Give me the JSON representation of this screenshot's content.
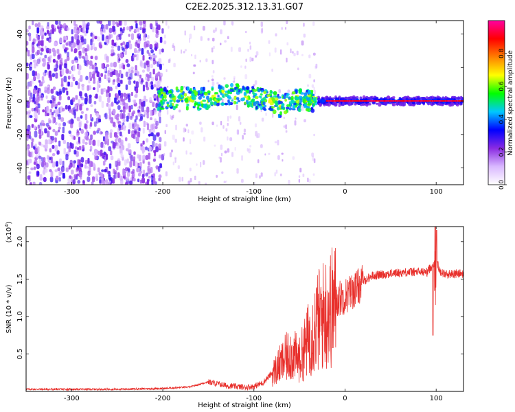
{
  "chart_data": [
    {
      "type": "heatmap",
      "title": "C2E2.2025.312.13.31.G07",
      "xlabel": "Height of straight line (km)",
      "ylabel": "Frequency (Hz)",
      "xlim": [
        -350,
        130
      ],
      "ylim": [
        -50,
        48
      ],
      "x_ticks": [
        -300,
        -200,
        -100,
        0,
        100
      ],
      "y_ticks": [
        -40,
        -20,
        0,
        20,
        40
      ],
      "colorbar": {
        "label": "Normalized spectral amplitude",
        "range": [
          0,
          1
        ],
        "ticks": [
          0.0,
          0.2,
          0.4,
          0.6,
          0.8
        ],
        "colors": [
          "#ffffff",
          "#d9b8ff",
          "#8a2be2",
          "#0000ff",
          "#00c8ff",
          "#00ff00",
          "#ffff00",
          "#ff8000",
          "#ff0000",
          "#ff00a0"
        ]
      },
      "signal_center_hz": [
        [
          -200,
          1
        ],
        [
          -180,
          2
        ],
        [
          -160,
          1
        ],
        [
          -140,
          3
        ],
        [
          -120,
          4
        ],
        [
          -100,
          2
        ],
        [
          -80,
          0
        ],
        [
          -70,
          -4
        ],
        [
          -60,
          1
        ],
        [
          -40,
          0
        ],
        [
          -20,
          0
        ],
        [
          0,
          0
        ],
        [
          100,
          0
        ],
        [
          130,
          0
        ]
      ]
    },
    {
      "type": "line",
      "xlabel": "Height of straight line (km)",
      "ylabel": "SNR (10 * v/v)",
      "multiplier_label": "(x10",
      "multiplier_exp": "4",
      "xlim": [
        -350,
        130
      ],
      "ylim": [
        0,
        2.2
      ],
      "x_ticks": [
        -300,
        -200,
        -100,
        0,
        100
      ],
      "y_ticks": [
        0.5,
        1.0,
        1.5,
        2.0
      ],
      "series": [
        {
          "name": "SNR",
          "color": "#e8302c",
          "x": [
            -350,
            -300,
            -250,
            -200,
            -170,
            -150,
            -130,
            -110,
            -100,
            -90,
            -80,
            -70,
            -60,
            -50,
            -40,
            -30,
            -20,
            -10,
            0,
            10,
            20,
            30,
            50,
            70,
            90,
            100,
            105,
            110,
            130
          ],
          "y": [
            0.03,
            0.03,
            0.03,
            0.04,
            0.06,
            0.13,
            0.08,
            0.06,
            0.07,
            0.12,
            0.25,
            0.4,
            0.55,
            0.45,
            0.75,
            1.0,
            1.15,
            1.25,
            1.3,
            1.38,
            1.48,
            1.55,
            1.58,
            1.6,
            1.6,
            1.75,
            1.6,
            1.57,
            1.58
          ]
        }
      ]
    }
  ]
}
